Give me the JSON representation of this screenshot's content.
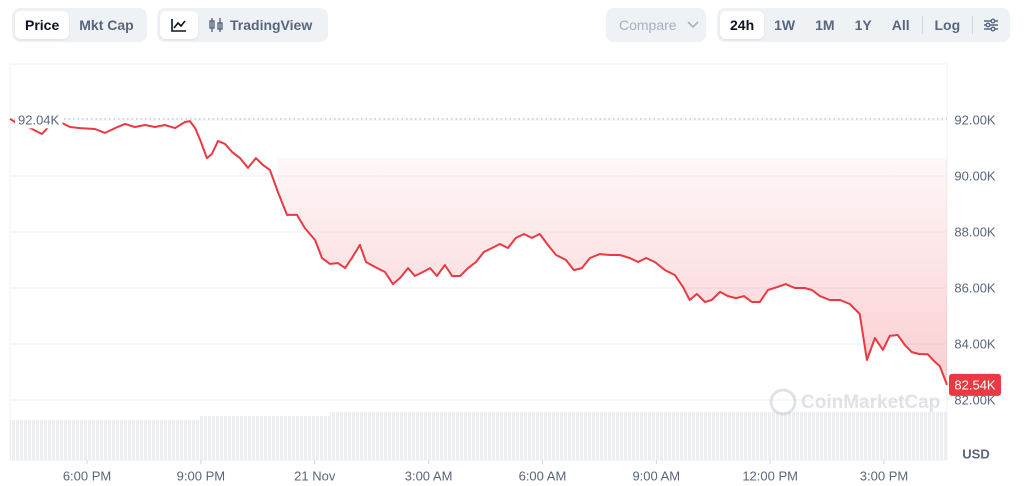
{
  "toolbar": {
    "price": "Price",
    "market_cap": "Mkt Cap",
    "trading_view": "TradingView",
    "compare": "Compare",
    "ranges": [
      "24h",
      "1W",
      "1M",
      "1Y",
      "All"
    ],
    "log": "Log"
  },
  "chart_data": {
    "type": "line",
    "watermark": "CoinMarketCap",
    "y_unit": "USD",
    "xlim": [
      -8.03,
      16.66
    ],
    "xticks": [
      {
        "value": -6,
        "label": "6:00 PM"
      },
      {
        "value": -3,
        "label": "9:00 PM"
      },
      {
        "value": 0,
        "label": "21 Nov"
      },
      {
        "value": 3,
        "label": "3:00 AM"
      },
      {
        "value": 6,
        "label": "6:00 AM"
      },
      {
        "value": 9,
        "label": "9:00 AM"
      },
      {
        "value": 12,
        "label": "12:00 PM"
      },
      {
        "value": 15,
        "label": "3:00 PM"
      }
    ],
    "ylim": [
      79857,
      94000
    ],
    "yticks": [
      {
        "value": 82000,
        "label": "82.00K"
      },
      {
        "value": 84000,
        "label": "84.00K"
      },
      {
        "value": 86000,
        "label": "86.00K"
      },
      {
        "value": 88000,
        "label": "88.00K"
      },
      {
        "value": 90000,
        "label": "90.00K"
      },
      {
        "value": 92000,
        "label": "92.00K"
      }
    ],
    "grid": true,
    "open_line": {
      "value": 92040,
      "label": "92.04K"
    },
    "price_tag": {
      "value": 82540,
      "label": "82.54K"
    },
    "x": [
      -8.03,
      -7.82,
      -7.55,
      -7.19,
      -6.97,
      -6.71,
      -6.45,
      -6.18,
      -5.79,
      -5.53,
      -5.26,
      -5.0,
      -4.74,
      -4.47,
      -4.21,
      -3.95,
      -3.68,
      -3.42,
      -3.29,
      -3.15,
      -3.02,
      -2.84,
      -2.71,
      -2.55,
      -2.36,
      -2.18,
      -1.97,
      -1.76,
      -1.55,
      -1.36,
      -1.18,
      -0.97,
      -0.73,
      -0.47,
      -0.26,
      0.01,
      0.19,
      0.4,
      0.61,
      0.8,
      0.98,
      1.19,
      1.35,
      1.59,
      1.85,
      2.06,
      2.25,
      2.46,
      2.64,
      2.85,
      3.04,
      3.22,
      3.43,
      3.62,
      3.83,
      4.04,
      4.25,
      4.46,
      4.67,
      4.88,
      5.09,
      5.3,
      5.51,
      5.72,
      5.93,
      6.14,
      6.36,
      6.62,
      6.83,
      7.04,
      7.25,
      7.51,
      7.78,
      8.04,
      8.3,
      8.52,
      8.73,
      8.96,
      9.23,
      9.49,
      9.7,
      9.88,
      10.07,
      10.28,
      10.46,
      10.68,
      10.89,
      11.1,
      11.31,
      11.52,
      11.73,
      11.94,
      12.2,
      12.41,
      12.65,
      12.91,
      13.1,
      13.31,
      13.57,
      13.84,
      14.1,
      14.36,
      14.55,
      14.76,
      14.97,
      15.15,
      15.36,
      15.55,
      15.73,
      15.94,
      16.15,
      16.34,
      16.47,
      16.66
    ],
    "series": [
      {
        "name": "Price",
        "color": "#ea3943",
        "values": [
          92040,
          91860,
          91750,
          91500,
          91820,
          91930,
          91750,
          91710,
          91680,
          91540,
          91710,
          91860,
          91750,
          91820,
          91750,
          91820,
          91710,
          91930,
          91960,
          91710,
          91290,
          90640,
          90790,
          91250,
          91140,
          90860,
          90640,
          90290,
          90640,
          90390,
          90210,
          89430,
          88610,
          88610,
          88140,
          87710,
          87070,
          86860,
          86890,
          86710,
          87070,
          87540,
          86930,
          86750,
          86570,
          86140,
          86360,
          86710,
          86430,
          86570,
          86710,
          86430,
          86820,
          86430,
          86430,
          86710,
          86930,
          87290,
          87430,
          87570,
          87430,
          87790,
          87930,
          87790,
          87930,
          87540,
          87180,
          87000,
          86640,
          86710,
          87070,
          87210,
          87180,
          87180,
          87070,
          86930,
          87070,
          86930,
          86640,
          86460,
          86040,
          85570,
          85790,
          85500,
          85570,
          85860,
          85710,
          85640,
          85710,
          85500,
          85500,
          85930,
          86040,
          86140,
          86000,
          86000,
          85930,
          85710,
          85570,
          85570,
          85430,
          85070,
          83430,
          84210,
          83790,
          84290,
          84320,
          83960,
          83710,
          83640,
          83640,
          83360,
          83210,
          82540
        ]
      }
    ]
  }
}
